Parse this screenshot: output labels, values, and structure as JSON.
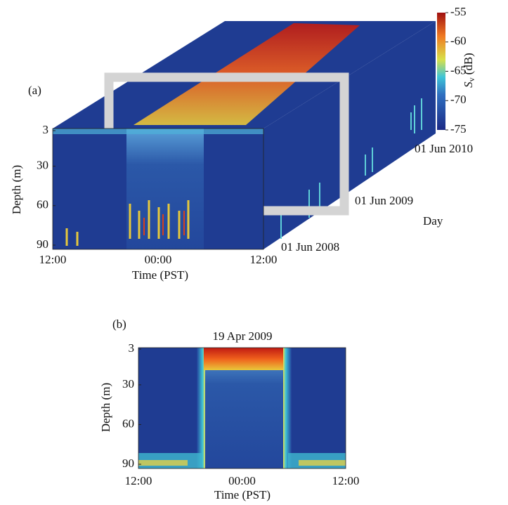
{
  "panel_a": {
    "label": "(a)",
    "y_label": "Depth (m)",
    "y_ticks": [
      3,
      30,
      60,
      90
    ],
    "x_label": "Time (PST)",
    "x_ticks": [
      "12:00",
      "00:00",
      "12:00"
    ],
    "days": [
      "01 Jun 2008",
      "01 Jun 2009",
      "01 Jun 2010"
    ],
    "day_label": "Day"
  },
  "colorbar": {
    "symbol": "S",
    "subscript": "v",
    "unit": "(dB)",
    "ticks": [
      -55,
      -60,
      -65,
      -70,
      -75
    ]
  },
  "panel_b": {
    "label": "(b)",
    "title": "19 Apr 2009",
    "y_label": "Depth (m)",
    "y_ticks": [
      3,
      30,
      60,
      90
    ],
    "x_label": "Time (PST)",
    "x_ticks": [
      "12:00",
      "00:00",
      "12:00"
    ]
  }
}
